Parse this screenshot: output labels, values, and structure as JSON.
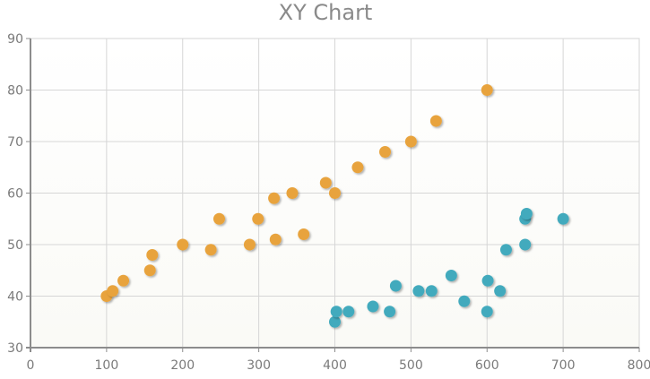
{
  "chart_data": {
    "type": "scatter",
    "title": "XY Chart",
    "xlabel": "",
    "ylabel": "",
    "xlim": [
      0,
      800
    ],
    "ylim": [
      30,
      90
    ],
    "x_ticks": [
      0,
      100,
      200,
      300,
      400,
      500,
      600,
      700,
      800
    ],
    "y_ticks": [
      30,
      40,
      50,
      60,
      70,
      80,
      90
    ],
    "grid": true,
    "legend": "none",
    "series": [
      {
        "color": "#E8A33C",
        "points": [
          [
            100,
            40
          ],
          [
            108,
            41
          ],
          [
            122,
            43
          ],
          [
            157,
            45
          ],
          [
            160,
            48
          ],
          [
            200,
            50
          ],
          [
            237,
            49
          ],
          [
            248,
            55
          ],
          [
            288,
            50
          ],
          [
            299,
            55
          ],
          [
            320,
            59
          ],
          [
            322,
            51
          ],
          [
            344,
            60
          ],
          [
            359,
            52
          ],
          [
            388,
            62
          ],
          [
            400,
            60
          ],
          [
            430,
            65
          ],
          [
            466,
            68
          ],
          [
            500,
            70
          ],
          [
            533,
            74
          ],
          [
            600,
            80
          ]
        ]
      },
      {
        "color": "#43AABD",
        "points": [
          [
            400,
            35
          ],
          [
            402,
            37
          ],
          [
            418,
            37
          ],
          [
            450,
            38
          ],
          [
            472,
            37
          ],
          [
            480,
            42
          ],
          [
            510,
            41
          ],
          [
            527,
            41
          ],
          [
            553,
            44
          ],
          [
            570,
            39
          ],
          [
            600,
            37
          ],
          [
            601,
            43
          ],
          [
            617,
            41
          ],
          [
            625,
            49
          ],
          [
            650,
            50
          ],
          [
            650,
            55
          ],
          [
            652,
            56
          ],
          [
            700,
            55
          ]
        ]
      }
    ]
  }
}
